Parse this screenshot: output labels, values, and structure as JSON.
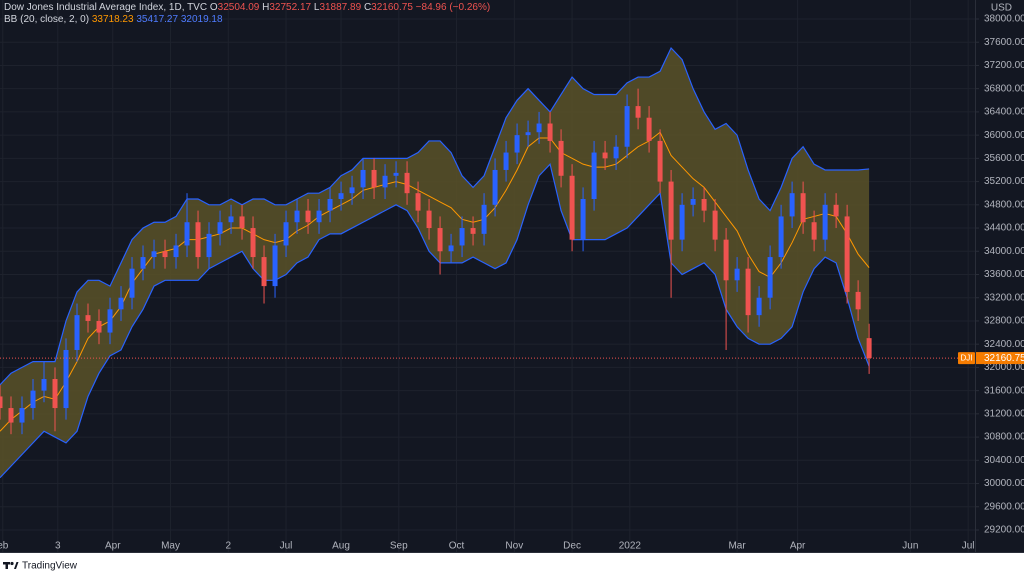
{
  "chart_data": {
    "type": "candlestick",
    "title": "Dow Jones Industrial Average Index, 1D, TVC",
    "o_label": "O",
    "h_label": "H",
    "l_label": "L",
    "c_label": "C",
    "change": "−84.96 (−0.26%)",
    "indicator": "BB (20, close, 2, 0)",
    "currency": "USD",
    "symbol_tag": "DJI",
    "brand": "TradingView",
    "up_color": "#2962ff",
    "down_color": "#ef5350",
    "tag_color": "#f57c00",
    "band_fill": "#5a5228",
    "grid": true,
    "xlim": [
      0,
      354.5
    ],
    "xticks": [
      {
        "value": 1,
        "label": "eb"
      },
      {
        "value": 21,
        "label": "3"
      },
      {
        "value": 41,
        "label": "Apr"
      },
      {
        "value": 62,
        "label": "May"
      },
      {
        "value": 83,
        "label": "2"
      },
      {
        "value": 104,
        "label": "Jul"
      },
      {
        "value": 124,
        "label": "Aug"
      },
      {
        "value": 145,
        "label": "Sep"
      },
      {
        "value": 166,
        "label": "Oct"
      },
      {
        "value": 187,
        "label": "Nov"
      },
      {
        "value": 208,
        "label": "Dec"
      },
      {
        "value": 229,
        "label": "2022"
      },
      {
        "value": 268,
        "label": "Mar"
      },
      {
        "value": 290,
        "label": "Apr"
      },
      {
        "value": 331,
        "label": "Jun"
      },
      {
        "value": 352,
        "label": "Jul"
      }
    ],
    "ylim": [
      28821,
      38327
    ],
    "yticks": [
      {
        "value": 29200,
        "label": "29200.00"
      },
      {
        "value": 29600,
        "label": "29600.00"
      },
      {
        "value": 30000,
        "label": "30000.00"
      },
      {
        "value": 30400,
        "label": "30400.00"
      },
      {
        "value": 30800,
        "label": "30800.00"
      },
      {
        "value": 31200,
        "label": "31200.00"
      },
      {
        "value": 31600,
        "label": "31600.00"
      },
      {
        "value": 32000,
        "label": "32000.00"
      },
      {
        "value": 32400,
        "label": "32400.00"
      },
      {
        "value": 32800,
        "label": "32800.00"
      },
      {
        "value": 33200,
        "label": "33200.00"
      },
      {
        "value": 33600,
        "label": "33600.00"
      },
      {
        "value": 34000,
        "label": "34000.00"
      },
      {
        "value": 34400,
        "label": "34400.00"
      },
      {
        "value": 34800,
        "label": "34800.00"
      },
      {
        "value": 35200,
        "label": "35200.00"
      },
      {
        "value": 35600,
        "label": "35600.00"
      },
      {
        "value": 36000,
        "label": "36000.00"
      },
      {
        "value": 36400,
        "label": "36400.00"
      },
      {
        "value": 36800,
        "label": "36800.00"
      },
      {
        "value": 37200,
        "label": "37200.00"
      },
      {
        "value": 37600,
        "label": "37600.00"
      },
      {
        "value": 38000,
        "label": "38000.00"
      }
    ],
    "x": [
      0,
      4,
      8,
      12,
      16,
      20,
      24,
      28,
      32,
      36,
      40,
      44,
      48,
      52,
      56,
      60,
      64,
      68,
      72,
      76,
      80,
      84,
      88,
      92,
      96,
      100,
      104,
      108,
      112,
      116,
      120,
      124,
      128,
      132,
      136,
      140,
      144,
      148,
      152,
      156,
      160,
      164,
      168,
      172,
      176,
      180,
      184,
      188,
      192,
      196,
      200,
      204,
      208,
      212,
      216,
      220,
      224,
      228,
      232,
      236,
      240,
      244,
      248,
      252,
      256,
      260,
      264,
      268,
      272,
      276,
      280,
      284,
      288,
      292,
      296,
      300,
      304,
      308,
      312,
      316
    ],
    "open": [
      31500,
      31300,
      31050,
      31300,
      31600,
      31800,
      31300,
      32300,
      32900,
      32800,
      32600,
      33000,
      33200,
      33700,
      33900,
      34000,
      33900,
      34100,
      34500,
      33900,
      34300,
      34500,
      34600,
      34400,
      33900,
      33400,
      34100,
      34500,
      34700,
      34500,
      34700,
      34900,
      35000,
      35100,
      35400,
      35100,
      35300,
      35350,
      35000,
      34700,
      34400,
      34000,
      34100,
      34400,
      34300,
      34800,
      35400,
      35700,
      36000,
      36050,
      36200,
      35900,
      35300,
      34200,
      34900,
      35700,
      35600,
      35800,
      36500,
      36300,
      35900,
      35200,
      34200,
      34800,
      34900,
      34700,
      34200,
      33500,
      33700,
      32900,
      33200,
      33900,
      34600,
      35000,
      34500,
      34200,
      34800,
      34600,
      33300,
      32504.09
    ],
    "high": [
      31700,
      31500,
      31500,
      31800,
      32100,
      32000,
      32500,
      33100,
      33100,
      33000,
      33200,
      33400,
      33900,
      34100,
      34200,
      34200,
      34300,
      35000,
      34700,
      34500,
      34700,
      34800,
      34800,
      34600,
      34100,
      34300,
      34700,
      34900,
      34900,
      34900,
      35100,
      35200,
      35300,
      35600,
      35600,
      35500,
      35550,
      35550,
      35200,
      34900,
      34600,
      34300,
      34600,
      34600,
      35000,
      35600,
      35900,
      36200,
      36250,
      36400,
      36400,
      36100,
      35500,
      35100,
      35900,
      35900,
      36000,
      36700,
      36800,
      36500,
      36100,
      35400,
      35000,
      35100,
      35100,
      34900,
      34400,
      33900,
      33900,
      33400,
      34100,
      34800,
      35200,
      35200,
      34700,
      35000,
      35000,
      34800,
      33500,
      32752.17
    ],
    "low": [
      31100,
      30850,
      30850,
      31100,
      31400,
      30900,
      31100,
      32100,
      32600,
      32400,
      32400,
      32800,
      33000,
      33500,
      33700,
      33700,
      33700,
      33900,
      33700,
      33700,
      34100,
      34300,
      34200,
      33700,
      33100,
      33200,
      33900,
      34300,
      34300,
      34300,
      34500,
      34700,
      34800,
      34900,
      34900,
      34900,
      35100,
      34800,
      34500,
      34200,
      33600,
      33800,
      33900,
      34100,
      34100,
      34600,
      35200,
      35500,
      35800,
      35850,
      35700,
      35100,
      34000,
      34000,
      34700,
      35400,
      35400,
      35600,
      36100,
      35700,
      35000,
      33200,
      34000,
      34600,
      34500,
      34000,
      32300,
      33300,
      32600,
      32700,
      33000,
      33700,
      34400,
      34300,
      34000,
      34000,
      34400,
      33100,
      32800,
      31887.89
    ],
    "close": [
      31300,
      31050,
      31300,
      31600,
      31800,
      31300,
      32300,
      32900,
      32800,
      32600,
      33000,
      33200,
      33700,
      33900,
      34000,
      33900,
      34100,
      34500,
      33900,
      34300,
      34500,
      34600,
      34400,
      33900,
      33400,
      34100,
      34500,
      34700,
      34500,
      34700,
      34900,
      35000,
      35100,
      35400,
      35100,
      35300,
      35350,
      35000,
      34700,
      34400,
      34000,
      34100,
      34400,
      34300,
      34800,
      35400,
      35700,
      36000,
      36050,
      36200,
      35900,
      35300,
      34200,
      34900,
      35700,
      35600,
      35800,
      36500,
      36300,
      35900,
      35200,
      34200,
      34800,
      34900,
      34700,
      34200,
      33500,
      33700,
      32900,
      33200,
      33900,
      34600,
      35000,
      34500,
      34200,
      34800,
      34600,
      33300,
      33000,
      32160.75
    ],
    "series": [
      {
        "color": "#ff9800",
        "values": [
          30900,
          31100,
          31250,
          31400,
          31500,
          31450,
          31750,
          32100,
          32500,
          32700,
          32800,
          33050,
          33450,
          33700,
          33950,
          34000,
          34050,
          34200,
          34200,
          34250,
          34300,
          34400,
          34400,
          34300,
          34200,
          34150,
          34200,
          34350,
          34450,
          34600,
          34700,
          34800,
          34900,
          35050,
          35100,
          35150,
          35200,
          35150,
          35050,
          34950,
          34850,
          34750,
          34550,
          34500,
          34550,
          34750,
          35050,
          35400,
          35800,
          35950,
          35950,
          35700,
          35600,
          35500,
          35450,
          35450,
          35500,
          35650,
          35800,
          35900,
          36050,
          35650,
          35450,
          35250,
          35100,
          34850,
          34600,
          34350,
          33950,
          33650,
          33550,
          33800,
          34150,
          34550,
          34600,
          34650,
          34600,
          34300,
          33950,
          33718.23
        ]
      },
      {
        "color": "#2962ff",
        "values": [
          31700,
          31900,
          32000,
          32100,
          32100,
          32100,
          32800,
          33300,
          33500,
          33500,
          33400,
          33800,
          34200,
          34400,
          34500,
          34500,
          34600,
          34900,
          34900,
          34800,
          34800,
          34900,
          34800,
          34900,
          34900,
          34800,
          34800,
          34900,
          35000,
          35000,
          35100,
          35300,
          35400,
          35600,
          35600,
          35600,
          35600,
          35600,
          35700,
          35900,
          35900,
          35700,
          35300,
          35100,
          35300,
          35800,
          36300,
          36600,
          36800,
          36600,
          36400,
          36700,
          37000,
          36800,
          36700,
          36700,
          36700,
          36900,
          37000,
          37000,
          37100,
          37500,
          37300,
          36800,
          36400,
          36100,
          36200,
          36000,
          35400,
          34900,
          34700,
          35100,
          35600,
          35800,
          35500,
          35400,
          35400,
          35400,
          35400,
          35417.27
        ]
      },
      {
        "color": "#2962ff",
        "values": [
          30100,
          30300,
          30500,
          30700,
          30900,
          30800,
          30700,
          30900,
          31500,
          31900,
          32200,
          32300,
          32700,
          33000,
          33400,
          33500,
          33500,
          33500,
          33500,
          33700,
          33800,
          33900,
          34000,
          33700,
          33500,
          33500,
          33600,
          33800,
          33900,
          34200,
          34300,
          34300,
          34400,
          34500,
          34600,
          34700,
          34800,
          34700,
          34400,
          34000,
          33800,
          33800,
          33800,
          33900,
          33800,
          33700,
          33800,
          34200,
          34800,
          35300,
          35500,
          34700,
          34200,
          34200,
          34200,
          34200,
          34300,
          34400,
          34600,
          34800,
          35000,
          33800,
          33600,
          33700,
          33800,
          33600,
          33000,
          32700,
          32500,
          32400,
          32400,
          32500,
          32700,
          33300,
          33700,
          33900,
          33800,
          33200,
          32500,
          32019.18
        ]
      }
    ]
  }
}
